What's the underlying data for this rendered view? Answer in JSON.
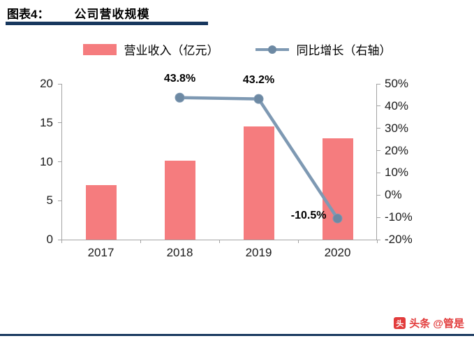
{
  "header": {
    "caption_prefix": "图表4：",
    "caption_title": "公司营收规模"
  },
  "legend": [
    {
      "type": "bar",
      "label": "营业收入（亿元）",
      "color": "#f57c7e"
    },
    {
      "type": "line",
      "label": "同比增长（右轴）",
      "color": "#7e99b3",
      "marker_color": "#6d89a3"
    }
  ],
  "chart_data": {
    "type": "bar+line",
    "title": "公司营收规模",
    "categories": [
      "2017",
      "2018",
      "2019",
      "2020"
    ],
    "series": [
      {
        "name": "营业收入（亿元）",
        "type": "bar",
        "axis": "left",
        "color": "#f57c7e",
        "values": [
          7.0,
          10.1,
          14.5,
          13.0
        ]
      },
      {
        "name": "同比增长（右轴）",
        "type": "line",
        "axis": "right",
        "color": "#7e99b3",
        "marker_color": "#6d89a3",
        "values": [
          null,
          43.8,
          43.2,
          -10.5
        ],
        "point_labels": [
          null,
          "43.8%",
          "43.2%",
          "-10.5%"
        ],
        "label_positions": [
          null,
          "above",
          "above",
          "left"
        ]
      }
    ],
    "left_axis": {
      "min": 0,
      "max": 20,
      "ticks": [
        20,
        15,
        10,
        5,
        0
      ],
      "tick_labels": [
        "20",
        "15",
        "10",
        "5",
        "0"
      ]
    },
    "right_axis": {
      "min": -20,
      "max": 50,
      "ticks": [
        50,
        40,
        30,
        20,
        10,
        0,
        -10,
        -20
      ],
      "tick_labels": [
        "50%",
        "40%",
        "30%",
        "20%",
        "10%",
        "0%",
        "-10%",
        "-20%"
      ]
    },
    "grid": false,
    "legend_position": "top"
  },
  "footer": {
    "logo_char": "头",
    "watermark_text": "头条 @管是"
  },
  "colors": {
    "navy": "#17375e",
    "bar": "#f57c7e",
    "line": "#7e99b3",
    "watermark_red": "#e23c3c"
  }
}
